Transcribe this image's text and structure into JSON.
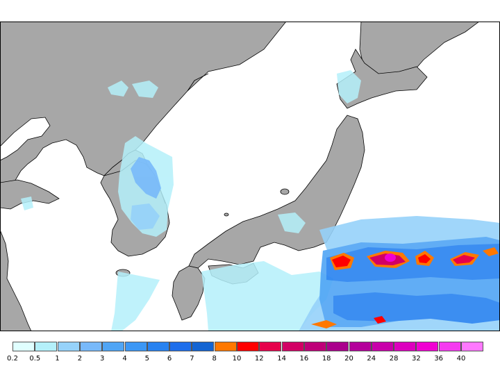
{
  "legend": {
    "bins": [
      {
        "color": "#e0ffff",
        "label": "0.2"
      },
      {
        "color": "#b4f0fa",
        "label": "0.5"
      },
      {
        "color": "#96d2fa",
        "label": "1"
      },
      {
        "color": "#78b9fa",
        "label": "2"
      },
      {
        "color": "#50a5f5",
        "label": "3"
      },
      {
        "color": "#3c97f5",
        "label": "4"
      },
      {
        "color": "#2882f0",
        "label": "5"
      },
      {
        "color": "#1e6eeb",
        "label": "6"
      },
      {
        "color": "#1464d2",
        "label": "7"
      },
      {
        "color": "#ff7800",
        "label": "8"
      },
      {
        "color": "#ff0000",
        "label": "10"
      },
      {
        "color": "#e6004b",
        "label": "12"
      },
      {
        "color": "#d20064",
        "label": "14"
      },
      {
        "color": "#be0078",
        "label": "16"
      },
      {
        "color": "#aa008c",
        "label": "18"
      },
      {
        "color": "#b4009b",
        "label": "20"
      },
      {
        "color": "#c800aa",
        "label": "24"
      },
      {
        "color": "#dc00be",
        "label": "28"
      },
      {
        "color": "#f000d2",
        "label": "32"
      },
      {
        "color": "#f53cf0",
        "label": "36"
      },
      {
        "color": "#ff78ff",
        "label": "40"
      }
    ]
  },
  "colors": {
    "land": "#a7a7a7",
    "sea": "#ffffff",
    "coastline": "#000000"
  }
}
